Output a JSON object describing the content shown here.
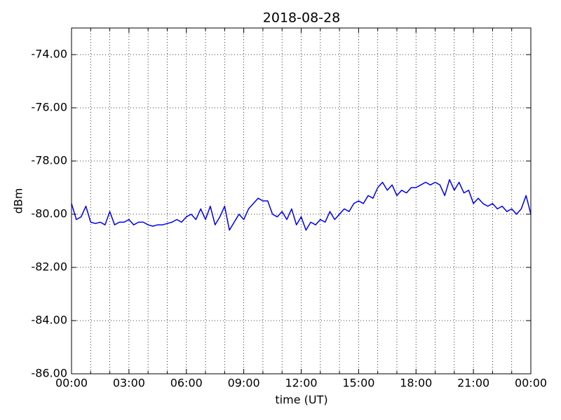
{
  "chart_data": {
    "type": "line",
    "title": "2018-08-28",
    "xlabel": "time (UT)",
    "ylabel": "dBm",
    "x": [
      0,
      0.25,
      0.5,
      0.75,
      1,
      1.25,
      1.5,
      1.75,
      2,
      2.25,
      2.5,
      2.75,
      3,
      3.25,
      3.5,
      3.75,
      4,
      4.25,
      4.5,
      4.75,
      5,
      5.25,
      5.5,
      5.75,
      6,
      6.25,
      6.5,
      6.75,
      7,
      7.25,
      7.5,
      7.75,
      8,
      8.25,
      8.5,
      8.75,
      9,
      9.25,
      9.5,
      9.75,
      10,
      10.25,
      10.5,
      10.75,
      11,
      11.25,
      11.5,
      11.75,
      12,
      12.25,
      12.5,
      12.75,
      13,
      13.25,
      13.5,
      13.75,
      14,
      14.25,
      14.5,
      14.75,
      15,
      15.25,
      15.5,
      15.75,
      16,
      16.25,
      16.5,
      16.75,
      17,
      17.25,
      17.5,
      17.75,
      18,
      18.25,
      18.5,
      18.75,
      19,
      19.25,
      19.5,
      19.75,
      20,
      20.25,
      20.5,
      20.75,
      21,
      21.25,
      21.5,
      21.75,
      22,
      22.25,
      22.5,
      22.75,
      23,
      23.25,
      23.5,
      23.75,
      24
    ],
    "series": [
      {
        "color": "#0000ff",
        "values": [
          -79.6,
          -80.2,
          -80.1,
          -79.7,
          -80.3,
          -80.35,
          -80.3,
          -80.4,
          -79.9,
          -80.4,
          -80.3,
          -80.3,
          -80.2,
          -80.4,
          -80.3,
          -80.3,
          -80.4,
          -80.45,
          -80.4,
          -80.4,
          -80.35,
          -80.3,
          -80.2,
          -80.3,
          -80.1,
          -80.0,
          -80.2,
          -79.8,
          -80.2,
          -79.7,
          -80.4,
          -80.1,
          -79.7,
          -80.6,
          -80.3,
          -80.0,
          -80.2,
          -79.8,
          -79.6,
          -79.4,
          -79.5,
          -79.5,
          -80.0,
          -80.1,
          -79.9,
          -80.2,
          -79.8,
          -80.4,
          -80.1,
          -80.6,
          -80.3,
          -80.4,
          -80.2,
          -80.3,
          -79.9,
          -80.2,
          -80.0,
          -79.8,
          -79.9,
          -79.6,
          -79.5,
          -79.6,
          -79.3,
          -79.4,
          -79.0,
          -78.8,
          -79.1,
          -78.9,
          -79.3,
          -79.1,
          -79.2,
          -79.0,
          -79.0,
          -78.9,
          -78.8,
          -78.9,
          -78.8,
          -78.9,
          -79.3,
          -78.7,
          -79.1,
          -78.8,
          -79.2,
          -79.1,
          -79.6,
          -79.4,
          -79.6,
          -79.7,
          -79.6,
          -79.8,
          -79.7,
          -79.9,
          -79.8,
          -80.0,
          -79.8,
          -79.3,
          -80.0
        ]
      }
    ],
    "xlim": [
      0,
      24
    ],
    "xticks": [
      {
        "value": 0,
        "label": "00:00"
      },
      {
        "value": 3,
        "label": "03:00"
      },
      {
        "value": 6,
        "label": "06:00"
      },
      {
        "value": 9,
        "label": "09:00"
      },
      {
        "value": 12,
        "label": "12:00"
      },
      {
        "value": 15,
        "label": "15:00"
      },
      {
        "value": 18,
        "label": "18:00"
      },
      {
        "value": 21,
        "label": "21:00"
      },
      {
        "value": 24,
        "label": "00:00"
      }
    ],
    "xminorticks": [
      1,
      2,
      4,
      5,
      7,
      8,
      10,
      11,
      13,
      14,
      16,
      17,
      19,
      20,
      22,
      23
    ],
    "ylim": [
      -86,
      -73
    ],
    "yticks": [
      {
        "value": -86,
        "label": "-86.00"
      },
      {
        "value": -84,
        "label": "-84.00"
      },
      {
        "value": -82,
        "label": "-82.00"
      },
      {
        "value": -80,
        "label": "-80.00"
      },
      {
        "value": -78,
        "label": "-78.00"
      },
      {
        "value": -76,
        "label": "-76.00"
      },
      {
        "value": -74,
        "label": "-74.00"
      }
    ],
    "grid": true
  }
}
